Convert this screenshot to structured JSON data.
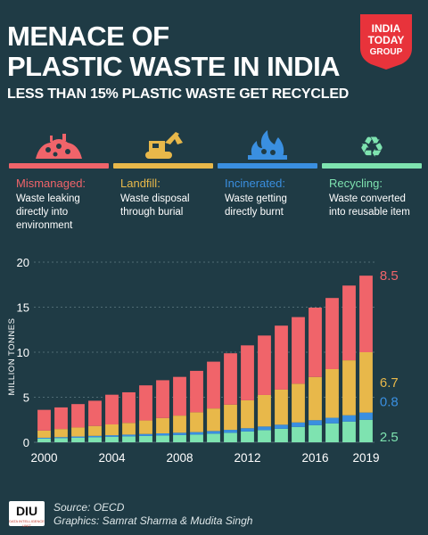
{
  "header": {
    "title_line1": "MENACE OF",
    "title_line2": "PLASTIC WASTE IN INDIA",
    "subtitle": "LESS THAN 15% PLASTIC WASTE GET RECYCLED",
    "logo_line1": "INDIA",
    "logo_line2": "TODAY",
    "logo_line3": "GROUP"
  },
  "categories": [
    {
      "name": "Mismanaged:",
      "desc": "Waste leaking directly into environment",
      "color": "#f0646a",
      "icon": "waste-pile-icon"
    },
    {
      "name": "Landfill:",
      "desc": "Waste disposal through burial",
      "color": "#e8b84a",
      "icon": "excavator-icon"
    },
    {
      "name": "Incinerated:",
      "desc": "Waste getting directly burnt",
      "color": "#3a8fe0",
      "icon": "fire-icon"
    },
    {
      "name": "Recycling:",
      "desc": "Waste converted into reusable item",
      "color": "#7ee3b0",
      "icon": "recycle-icon"
    }
  ],
  "chart_data": {
    "type": "bar",
    "stacked": true,
    "ylabel": "MILLION TONNES",
    "ylim": [
      0,
      20
    ],
    "yticks": [
      0,
      5,
      10,
      15,
      20
    ],
    "x_tick_labels": [
      "2000",
      "2004",
      "2008",
      "2012",
      "2016",
      "2019"
    ],
    "categories": [
      "2000",
      "2001",
      "2002",
      "2003",
      "2004",
      "2005",
      "2006",
      "2007",
      "2008",
      "2009",
      "2010",
      "2011",
      "2012",
      "2013",
      "2014",
      "2015",
      "2016",
      "2017",
      "2018",
      "2019"
    ],
    "series": [
      {
        "name": "Recycling",
        "color": "#7ee3b0",
        "values": [
          0.4,
          0.45,
          0.5,
          0.55,
          0.6,
          0.65,
          0.7,
          0.75,
          0.8,
          0.85,
          0.95,
          1.05,
          1.2,
          1.35,
          1.5,
          1.7,
          1.9,
          2.1,
          2.3,
          2.5
        ]
      },
      {
        "name": "Incinerated",
        "color": "#3a8fe0",
        "values": [
          0.1,
          0.12,
          0.14,
          0.16,
          0.18,
          0.2,
          0.22,
          0.24,
          0.26,
          0.28,
          0.3,
          0.33,
          0.36,
          0.4,
          0.45,
          0.5,
          0.55,
          0.62,
          0.7,
          0.8
        ]
      },
      {
        "name": "Landfill",
        "color": "#e8b84a",
        "values": [
          0.8,
          0.9,
          1.0,
          1.1,
          1.2,
          1.3,
          1.5,
          1.7,
          1.9,
          2.2,
          2.5,
          2.8,
          3.1,
          3.5,
          3.9,
          4.3,
          4.8,
          5.4,
          6.1,
          6.7
        ]
      },
      {
        "name": "Mismanaged",
        "color": "#f0646a",
        "values": [
          2.3,
          2.4,
          2.6,
          2.8,
          3.3,
          3.4,
          3.9,
          4.2,
          4.3,
          4.6,
          5.2,
          5.7,
          6.1,
          6.6,
          7.1,
          7.4,
          7.7,
          7.9,
          8.3,
          8.5
        ]
      }
    ],
    "end_labels": [
      {
        "series": "Mismanaged",
        "value": "8.5",
        "color": "#f0646a"
      },
      {
        "series": "Landfill",
        "value": "6.7",
        "color": "#e8b84a"
      },
      {
        "series": "Incinerated",
        "value": "0.8",
        "color": "#3a8fe0"
      },
      {
        "series": "Recycling",
        "value": "2.5",
        "color": "#7ee3b0"
      }
    ]
  },
  "footer": {
    "logo_text": "DIU",
    "logo_subtext": "DATA INTELLIGENCE UNIT",
    "source": "Source: OECD",
    "credit": "Graphics: Samrat Sharma & Mudita Singh"
  }
}
